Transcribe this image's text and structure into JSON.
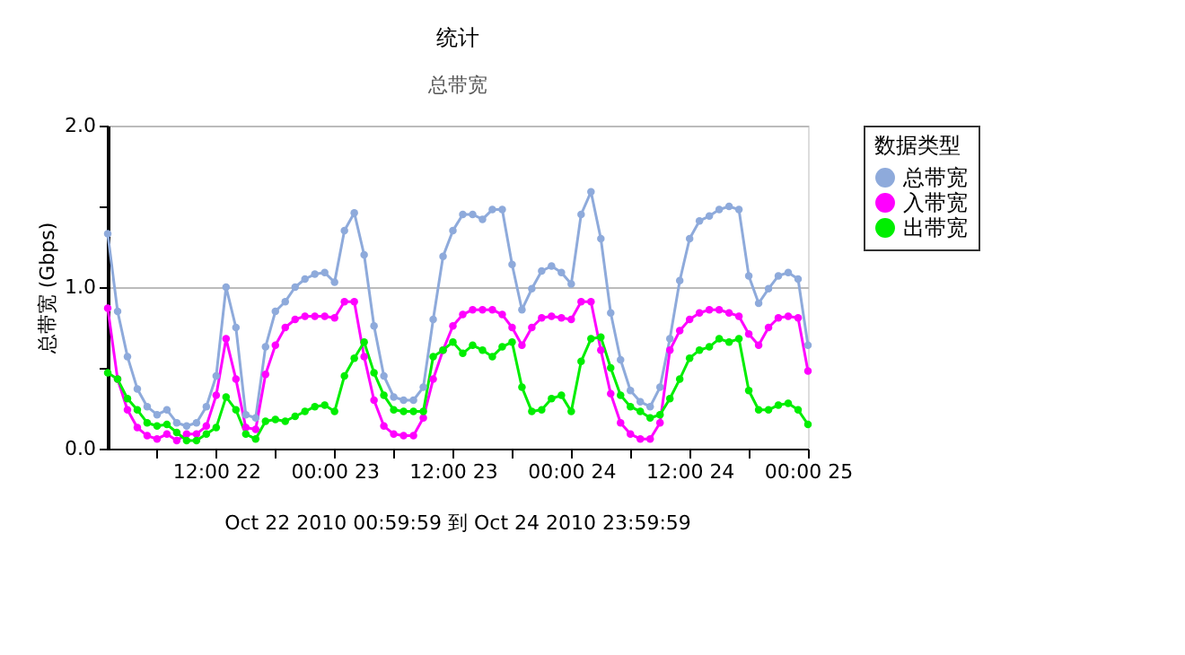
{
  "chart_data": {
    "type": "line",
    "title": "统计",
    "subtitle": "总带宽",
    "ylabel": "总带宽 (Gbps)",
    "legend_title": "数据类型",
    "legend": "right",
    "grid": "y",
    "marker": "circle",
    "line_style": "solid",
    "annotations": [
      "Oct 22 2010  00:59:59 到 Oct 24 2010  23:59:59"
    ],
    "x": [
      "2010-10-22T01:00",
      "2010-10-22T02:00",
      "2010-10-22T03:00",
      "2010-10-22T04:00",
      "2010-10-22T05:00",
      "2010-10-22T06:00",
      "2010-10-22T07:00",
      "2010-10-22T08:00",
      "2010-10-22T09:00",
      "2010-10-22T10:00",
      "2010-10-22T11:00",
      "2010-10-22T12:00",
      "2010-10-22T13:00",
      "2010-10-22T14:00",
      "2010-10-22T15:00",
      "2010-10-22T16:00",
      "2010-10-22T17:00",
      "2010-10-22T18:00",
      "2010-10-22T19:00",
      "2010-10-22T20:00",
      "2010-10-22T21:00",
      "2010-10-22T22:00",
      "2010-10-22T23:00",
      "2010-10-23T00:00",
      "2010-10-23T01:00",
      "2010-10-23T02:00",
      "2010-10-23T03:00",
      "2010-10-23T04:00",
      "2010-10-23T05:00",
      "2010-10-23T06:00",
      "2010-10-23T07:00",
      "2010-10-23T08:00",
      "2010-10-23T09:00",
      "2010-10-23T10:00",
      "2010-10-23T11:00",
      "2010-10-23T12:00",
      "2010-10-23T13:00",
      "2010-10-23T14:00",
      "2010-10-23T15:00",
      "2010-10-23T16:00",
      "2010-10-23T17:00",
      "2010-10-23T18:00",
      "2010-10-23T19:00",
      "2010-10-23T20:00",
      "2010-10-23T21:00",
      "2010-10-23T22:00",
      "2010-10-23T23:00",
      "2010-10-24T00:00",
      "2010-10-24T01:00",
      "2010-10-24T02:00",
      "2010-10-24T03:00",
      "2010-10-24T04:00",
      "2010-10-24T05:00",
      "2010-10-24T06:00",
      "2010-10-24T07:00",
      "2010-10-24T08:00",
      "2010-10-24T09:00",
      "2010-10-24T10:00",
      "2010-10-24T11:00",
      "2010-10-24T12:00",
      "2010-10-24T13:00",
      "2010-10-24T14:00",
      "2010-10-24T15:00",
      "2010-10-24T16:00",
      "2010-10-24T17:00",
      "2010-10-24T18:00",
      "2010-10-24T19:00",
      "2010-10-24T20:00",
      "2010-10-24T21:00",
      "2010-10-24T22:00",
      "2010-10-24T23:00",
      "2010-10-25T00:00"
    ],
    "xlim": [
      "2010-10-22T01:00",
      "2010-10-25T00:00"
    ],
    "xticks": [
      {
        "value": "2010-10-22T06:00",
        "label": null
      },
      {
        "value": "2010-10-22T12:00",
        "label": "12:00 22"
      },
      {
        "value": "2010-10-22T18:00",
        "label": null
      },
      {
        "value": "2010-10-23T00:00",
        "label": "00:00 23"
      },
      {
        "value": "2010-10-23T06:00",
        "label": null
      },
      {
        "value": "2010-10-23T12:00",
        "label": "12:00 23"
      },
      {
        "value": "2010-10-23T18:00",
        "label": null
      },
      {
        "value": "2010-10-24T00:00",
        "label": "00:00 24"
      },
      {
        "value": "2010-10-24T06:00",
        "label": null
      },
      {
        "value": "2010-10-24T12:00",
        "label": "12:00 24"
      },
      {
        "value": "2010-10-24T18:00",
        "label": null
      },
      {
        "value": "2010-10-25T00:00",
        "label": "00:00 25"
      }
    ],
    "ylim": [
      0,
      2
    ],
    "yticks": [
      {
        "value": 0,
        "label": "0.0"
      },
      {
        "value": 0.5,
        "label": null
      },
      {
        "value": 1,
        "label": "1.0"
      },
      {
        "value": 1.5,
        "label": null
      },
      {
        "value": 2,
        "label": "2.0"
      }
    ],
    "series": [
      {
        "name": "总带宽",
        "color": "#8eaadb",
        "values": [
          1.33,
          0.85,
          0.57,
          0.37,
          0.26,
          0.21,
          0.24,
          0.16,
          0.14,
          0.16,
          0.26,
          0.45,
          1.0,
          0.75,
          0.21,
          0.19,
          0.63,
          0.85,
          0.91,
          1.0,
          1.05,
          1.08,
          1.09,
          1.03,
          1.35,
          1.46,
          1.2,
          0.76,
          0.45,
          0.32,
          0.3,
          0.3,
          0.38,
          0.8,
          1.19,
          1.35,
          1.45,
          1.45,
          1.42,
          1.48,
          1.48,
          1.14,
          0.86,
          0.99,
          1.1,
          1.13,
          1.09,
          1.02,
          1.45,
          1.59,
          1.3,
          0.84,
          0.55,
          0.36,
          0.29,
          0.26,
          0.38,
          0.68,
          1.04,
          1.3,
          1.41,
          1.44,
          1.48,
          1.5,
          1.48,
          1.07,
          0.9,
          0.99,
          1.07,
          1.09,
          1.05,
          0.64
        ]
      },
      {
        "name": "入带宽",
        "color": "#ff00ff",
        "values": [
          0.87,
          0.43,
          0.24,
          0.13,
          0.08,
          0.06,
          0.09,
          0.05,
          0.09,
          0.09,
          0.14,
          0.33,
          0.68,
          0.43,
          0.13,
          0.12,
          0.46,
          0.64,
          0.75,
          0.8,
          0.82,
          0.82,
          0.82,
          0.81,
          0.91,
          0.91,
          0.57,
          0.3,
          0.14,
          0.09,
          0.08,
          0.08,
          0.19,
          0.43,
          0.61,
          0.76,
          0.83,
          0.86,
          0.86,
          0.86,
          0.83,
          0.75,
          0.64,
          0.75,
          0.81,
          0.82,
          0.81,
          0.8,
          0.91,
          0.91,
          0.61,
          0.34,
          0.16,
          0.09,
          0.06,
          0.06,
          0.16,
          0.61,
          0.73,
          0.8,
          0.84,
          0.86,
          0.86,
          0.84,
          0.82,
          0.71,
          0.64,
          0.75,
          0.81,
          0.82,
          0.81,
          0.48
        ]
      },
      {
        "name": "出带宽",
        "color": "#00ee00",
        "values": [
          0.47,
          0.43,
          0.31,
          0.24,
          0.16,
          0.14,
          0.15,
          0.1,
          0.05,
          0.05,
          0.09,
          0.13,
          0.32,
          0.24,
          0.09,
          0.06,
          0.17,
          0.18,
          0.17,
          0.2,
          0.23,
          0.26,
          0.27,
          0.23,
          0.45,
          0.56,
          0.66,
          0.47,
          0.33,
          0.24,
          0.23,
          0.23,
          0.23,
          0.57,
          0.61,
          0.66,
          0.59,
          0.64,
          0.61,
          0.57,
          0.63,
          0.66,
          0.38,
          0.23,
          0.24,
          0.31,
          0.33,
          0.23,
          0.54,
          0.68,
          0.69,
          0.5,
          0.33,
          0.26,
          0.23,
          0.19,
          0.21,
          0.31,
          0.43,
          0.56,
          0.61,
          0.63,
          0.68,
          0.66,
          0.68,
          0.36,
          0.24,
          0.24,
          0.27,
          0.28,
          0.24,
          0.15
        ]
      }
    ]
  }
}
